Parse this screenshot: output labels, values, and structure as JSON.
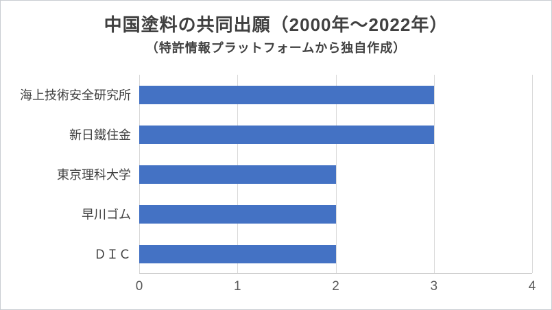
{
  "chart_data": {
    "type": "bar",
    "orientation": "horizontal",
    "title": "中国塗料の共同出願（2000年～2022年）",
    "subtitle": "（特許情報プラットフォームから独自作成）",
    "categories": [
      "海上技術安全研究所",
      "新日鐵住金",
      "東京理科大学",
      "早川ゴム",
      "ＤＩＣ"
    ],
    "values": [
      3,
      3,
      2,
      2,
      2
    ],
    "xlabel": "",
    "ylabel": "",
    "xlim": [
      0,
      4
    ],
    "xticks": [
      0,
      1,
      2,
      3,
      4
    ],
    "bar_color": "#4472c4",
    "grid": true,
    "legend": false
  }
}
